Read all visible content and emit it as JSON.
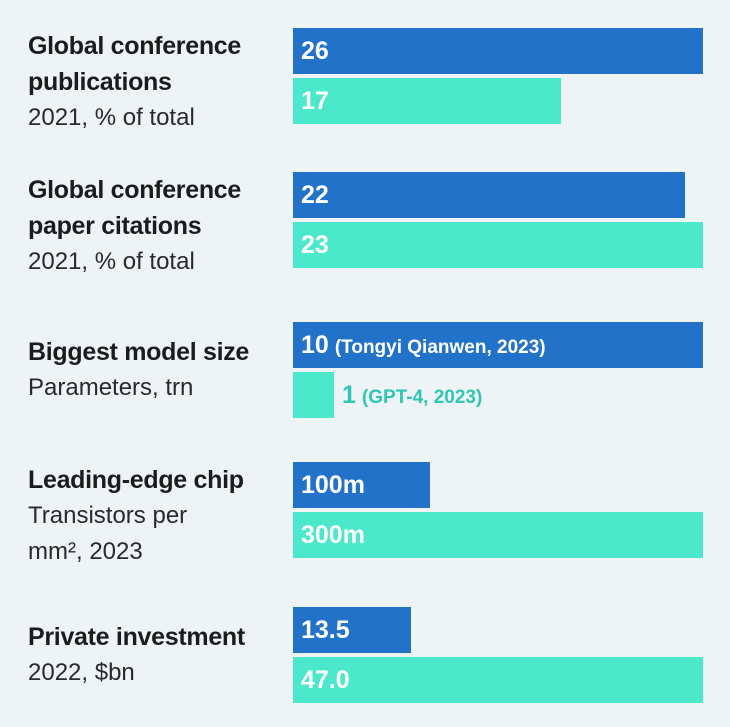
{
  "chart_data": {
    "type": "bar",
    "orientation": "horizontal",
    "series_colors": {
      "series_a": "#2272c9",
      "series_b": "#4ce8cb"
    },
    "text_colors": {
      "on_dark": "#ffffff",
      "on_light": "#ffffff",
      "outside": "#2fc7b2"
    },
    "groups": [
      {
        "title": "Global conference\npublications",
        "subtitle": "2021, % of total",
        "bars": [
          {
            "series": "series_a",
            "value": 26,
            "label": "26",
            "note": ""
          },
          {
            "series": "series_b",
            "value": 17,
            "label": "17",
            "note": ""
          }
        ]
      },
      {
        "title": "Global conference\npaper citations",
        "subtitle": "2021, % of total",
        "bars": [
          {
            "series": "series_a",
            "value": 22,
            "label": "22",
            "note": ""
          },
          {
            "series": "series_b",
            "value": 23,
            "label": "23",
            "note": ""
          }
        ]
      },
      {
        "title": "Biggest model size",
        "subtitle": "Parameters, trn",
        "bars": [
          {
            "series": "series_a",
            "value": 10,
            "label": "10",
            "note": "(Tongyi Qianwen, 2023)"
          },
          {
            "series": "series_b",
            "value": 1,
            "label": "1",
            "note": "(GPT-4, 2023)"
          }
        ]
      },
      {
        "title": "Leading-edge chip",
        "subtitle": "Transistors per\nmm², 2023",
        "bars": [
          {
            "series": "series_a",
            "value": 100,
            "label": "100m",
            "note": ""
          },
          {
            "series": "series_b",
            "value": 300,
            "label": "300m",
            "note": ""
          }
        ]
      },
      {
        "title": "Private investment",
        "subtitle": "2022, $bn",
        "bars": [
          {
            "series": "series_a",
            "value": 13.5,
            "label": "13.5",
            "note": ""
          },
          {
            "series": "series_b",
            "value": 47.0,
            "label": "47.0",
            "note": ""
          }
        ]
      }
    ]
  }
}
